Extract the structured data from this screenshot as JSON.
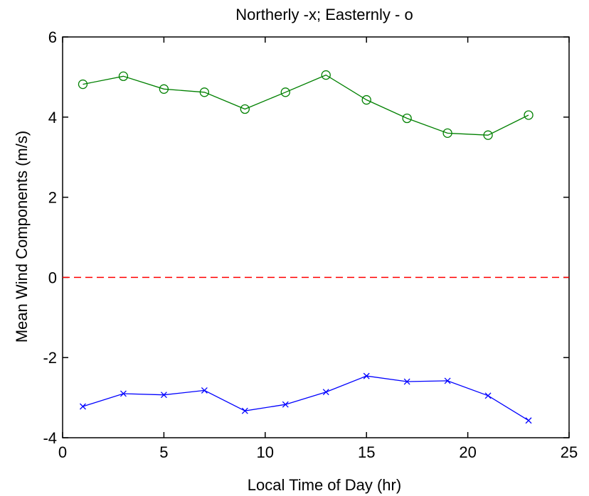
{
  "chart_data": {
    "type": "line",
    "title": "Northerly -x; Easternly - o",
    "xlabel": "Local Time of Day (hr)",
    "ylabel": "Mean Wind Components (m/s)",
    "xlim": [
      0,
      25
    ],
    "ylim": [
      -4,
      6
    ],
    "xticks": [
      0,
      5,
      10,
      15,
      20,
      25
    ],
    "yticks": [
      -4,
      -2,
      0,
      2,
      4,
      6
    ],
    "xtick_labels": [
      "0",
      "5",
      "10",
      "15",
      "20",
      "25"
    ],
    "ytick_labels": [
      "-4",
      "-2",
      "0",
      "2",
      "4",
      "6"
    ],
    "grid": false,
    "x": [
      1,
      3,
      5,
      7,
      9,
      11,
      13,
      15,
      17,
      19,
      21,
      23
    ],
    "series": [
      {
        "marker": "o",
        "color": "#008000",
        "values": [
          4.82,
          5.02,
          4.7,
          4.62,
          4.2,
          4.62,
          5.05,
          4.43,
          3.97,
          3.6,
          3.55,
          4.05
        ]
      },
      {
        "marker": "x",
        "color": "#0000ff",
        "values": [
          -3.22,
          -2.9,
          -2.93,
          -2.82,
          -3.33,
          -3.17,
          -2.86,
          -2.46,
          -2.6,
          -2.58,
          -2.95,
          -3.57
        ]
      }
    ],
    "reference_line": {
      "y": 0,
      "color": "#ff0000",
      "style": "dashed"
    }
  }
}
